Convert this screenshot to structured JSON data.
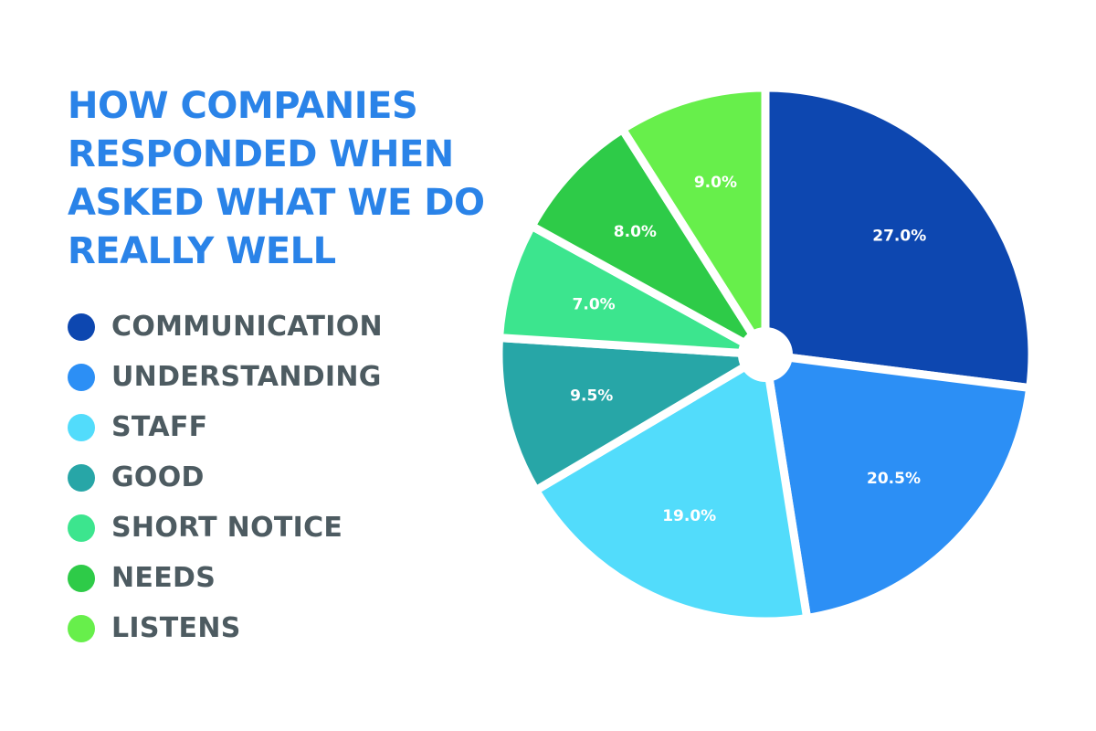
{
  "chart_data": {
    "type": "pie",
    "title": "HOW COMPANIES RESPONDED WHEN ASKED WHAT WE DO REALLY WELL",
    "categories": [
      "COMMUNICATION",
      "UNDERSTANDING",
      "STAFF",
      "GOOD",
      "SHORT NOTICE",
      "NEEDS",
      "LISTENS"
    ],
    "values": [
      27.0,
      20.5,
      19.0,
      9.5,
      7.0,
      8.0,
      9.0
    ],
    "value_labels": [
      "27.0%",
      "20.5%",
      "19.0%",
      "9.5%",
      "7.0%",
      "8.0%",
      "9.0%"
    ],
    "colors": [
      "#0d47b0",
      "#2c8ff5",
      "#52dcfb",
      "#27a6a7",
      "#3ce58e",
      "#2ecb48",
      "#67ef4b"
    ],
    "legend_position": "left",
    "direction": "clockwise from top",
    "center_hole": true
  }
}
